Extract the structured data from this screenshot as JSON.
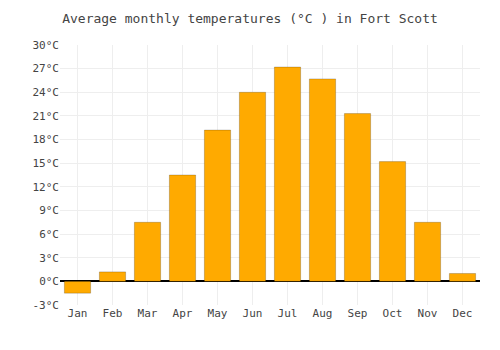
{
  "chart_data": {
    "type": "bar",
    "title": "Average monthly temperatures (°C ) in Fort Scott",
    "categories": [
      "Jan",
      "Feb",
      "Mar",
      "Apr",
      "May",
      "Jun",
      "Jul",
      "Aug",
      "Sep",
      "Oct",
      "Nov",
      "Dec"
    ],
    "values": [
      -1.5,
      1.2,
      7.5,
      13.5,
      19.2,
      24.0,
      27.2,
      25.7,
      21.3,
      15.2,
      7.5,
      1.0
    ],
    "color": "#FFAA00",
    "ylim": [
      -3,
      30
    ],
    "yticks": [
      {
        "value": -3,
        "label": "-3°C"
      },
      {
        "value": 0,
        "label": "0°C"
      },
      {
        "value": 3,
        "label": "3°C"
      },
      {
        "value": 6,
        "label": "6°C"
      },
      {
        "value": 9,
        "label": "9°C"
      },
      {
        "value": 12,
        "label": "12°C"
      },
      {
        "value": 15,
        "label": "15°C"
      },
      {
        "value": 18,
        "label": "18°C"
      },
      {
        "value": 21,
        "label": "21°C"
      },
      {
        "value": 24,
        "label": "24°C"
      },
      {
        "value": 27,
        "label": "27°C"
      },
      {
        "value": 30,
        "label": "30°C"
      }
    ],
    "grid": true
  }
}
